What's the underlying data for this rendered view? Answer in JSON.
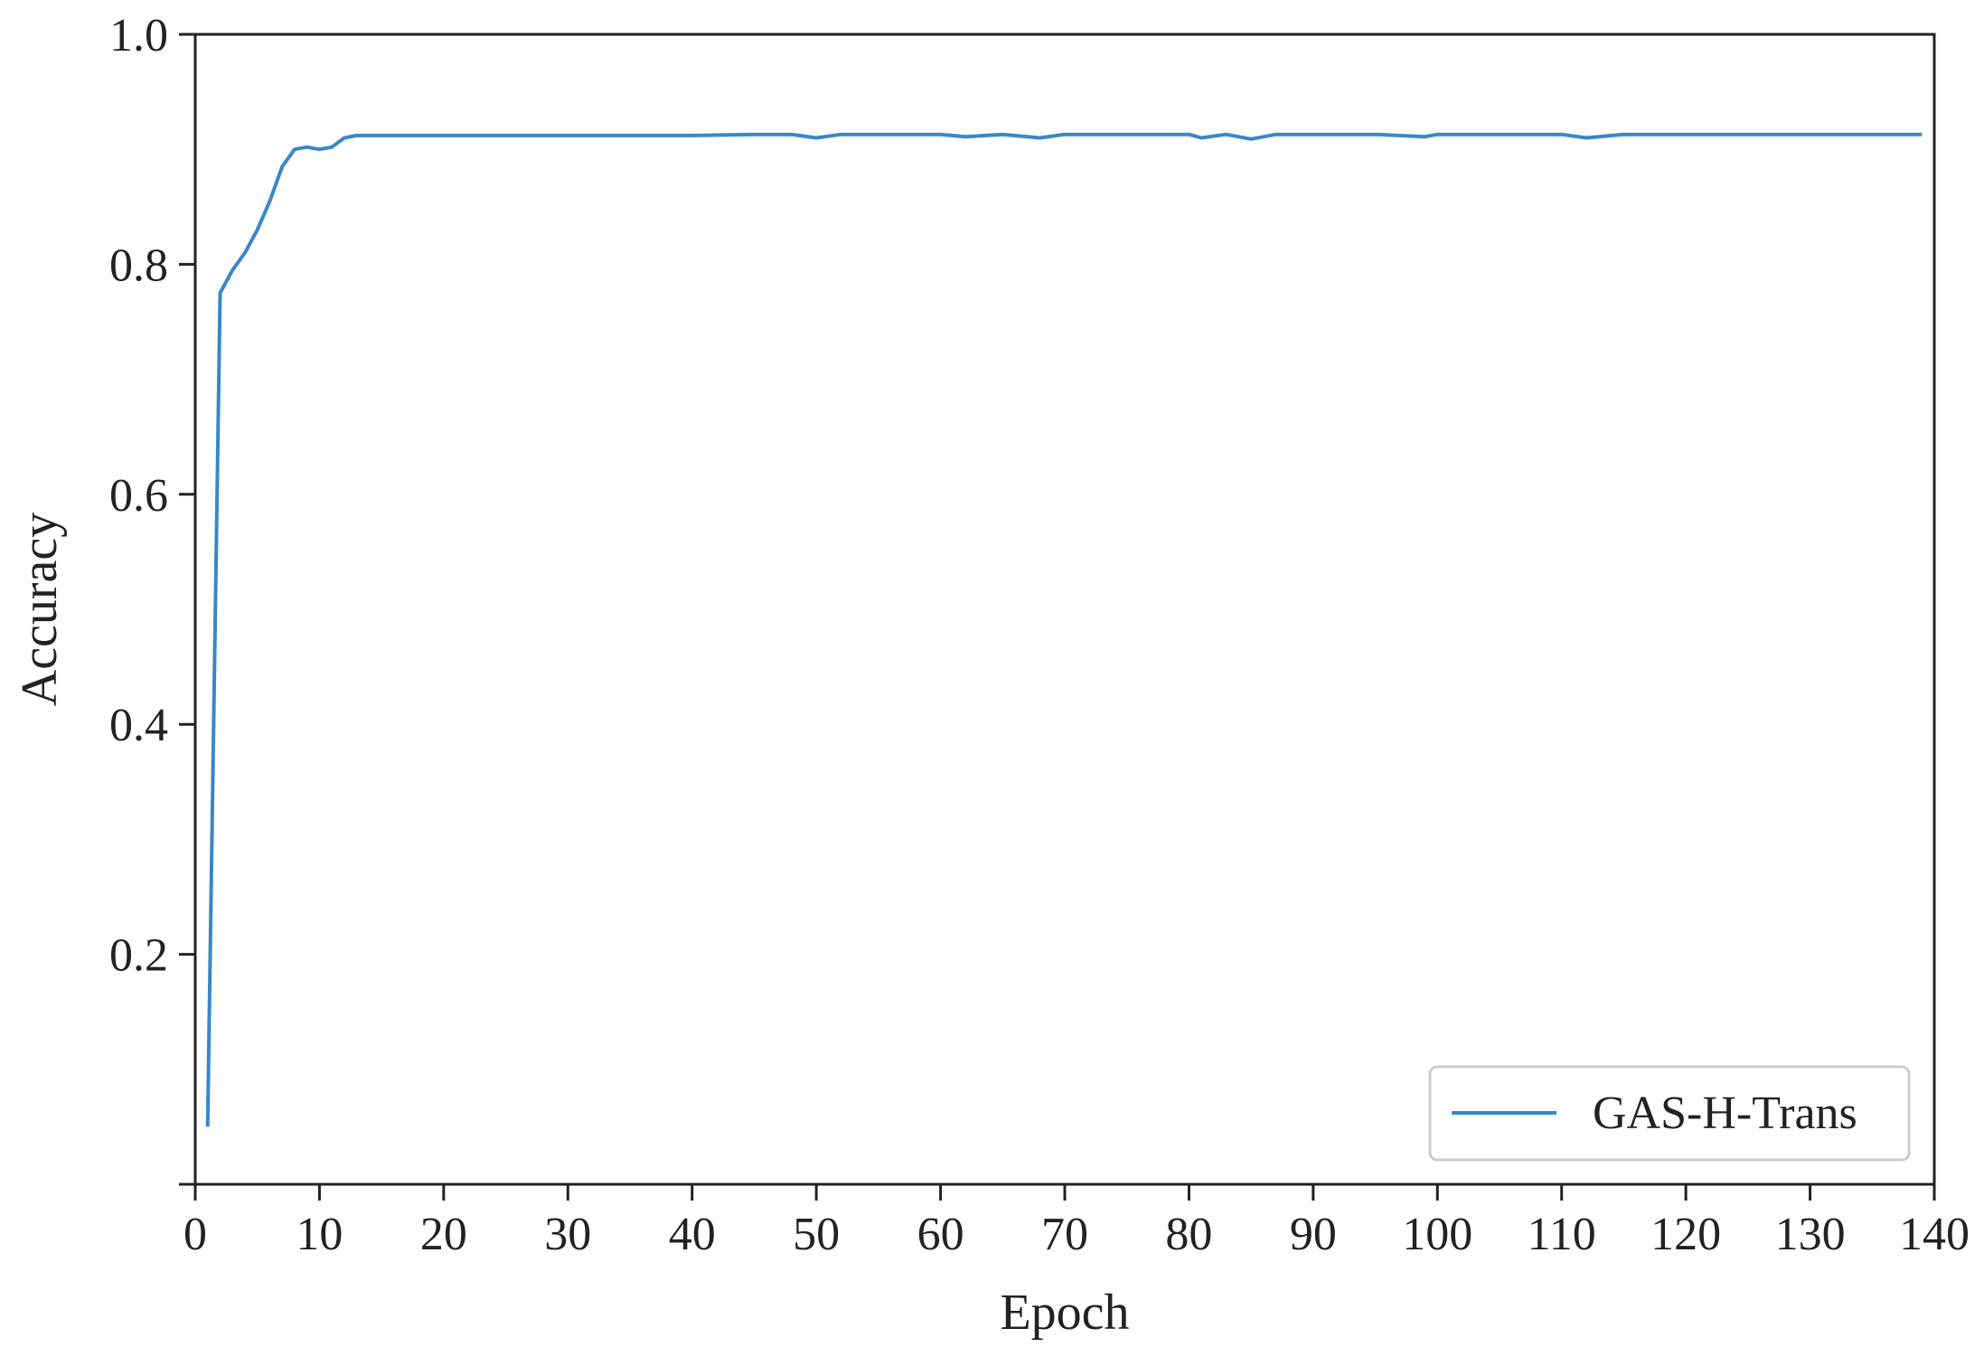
{
  "chart_data": {
    "type": "line",
    "title": "",
    "xlabel": "Epoch",
    "ylabel": "Accuracy",
    "xlim": [
      0,
      140
    ],
    "ylim": [
      0,
      1.0
    ],
    "xticks": [
      "0",
      "10",
      "20",
      "30",
      "40",
      "50",
      "60",
      "70",
      "80",
      "90",
      "100",
      "110",
      "120",
      "130",
      "140"
    ],
    "yticks": [
      "0.2",
      "0.4",
      "0.6",
      "0.8",
      "1.0"
    ],
    "grid": false,
    "legend_position": "bottom-right",
    "series": [
      {
        "name": "GAS-H-Trans",
        "color": "#3a87c8",
        "x": [
          1,
          2,
          3,
          4,
          5,
          6,
          7,
          8,
          9,
          10,
          11,
          12,
          13,
          14,
          15,
          20,
          25,
          30,
          35,
          40,
          45,
          48,
          50,
          52,
          55,
          60,
          62,
          65,
          68,
          70,
          75,
          80,
          81,
          83,
          85,
          87,
          90,
          95,
          99,
          100,
          105,
          110,
          112,
          115,
          120,
          125,
          130,
          135,
          139
        ],
        "y": [
          0.05,
          0.775,
          0.795,
          0.81,
          0.83,
          0.855,
          0.885,
          0.9,
          0.902,
          0.9,
          0.902,
          0.91,
          0.912,
          0.912,
          0.912,
          0.912,
          0.912,
          0.912,
          0.912,
          0.912,
          0.913,
          0.913,
          0.91,
          0.913,
          0.913,
          0.913,
          0.911,
          0.913,
          0.91,
          0.913,
          0.913,
          0.913,
          0.91,
          0.913,
          0.909,
          0.913,
          0.913,
          0.913,
          0.911,
          0.913,
          0.913,
          0.913,
          0.91,
          0.913,
          0.913,
          0.913,
          0.913,
          0.913,
          0.913
        ]
      }
    ]
  }
}
